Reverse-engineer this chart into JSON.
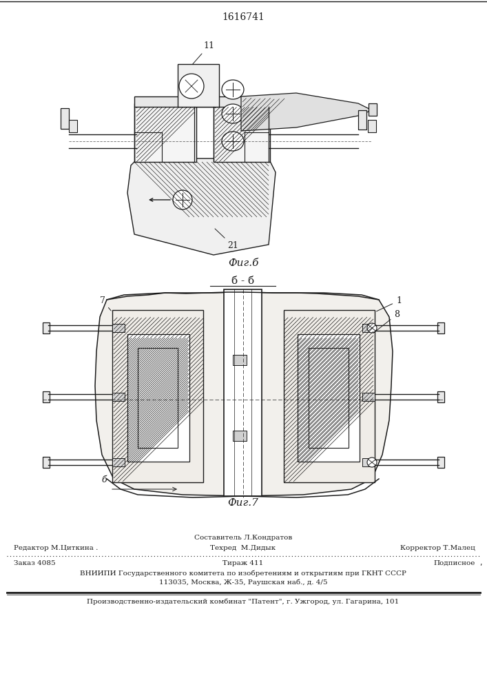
{
  "patent_number": "1616741",
  "fig6_label": "Фиг.б",
  "fig7_label": "Фиг.7",
  "section_label": "б - б",
  "bg_color": "#ffffff",
  "line_color": "#1a1a1a",
  "footer": {
    "sostavitel": "Составитель Л.Кондратов",
    "redaktor": "Редактор М.Циткина .",
    "tehred": "Техред  М.Дидык",
    "korrektor": "Корректор Т.Малец",
    "zakaz": "Заказ 4085",
    "tirazh": "Тираж 411",
    "podpisnoe": "Подписное",
    "vniipи1": "ВНИИПИ Государственного комитета по изобретениям и открытиям при ГКНТ СССР",
    "vniipи2": "113035, Москва, Ж-35, Раушская наб., д. 4/5",
    "proizv": "Производственно-издательский комбинат \"Патент\", г. Ужгород, ул. Гагарина, 101"
  }
}
